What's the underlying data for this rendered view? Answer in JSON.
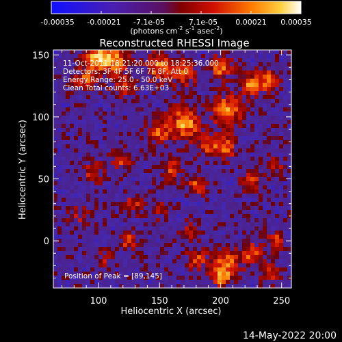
{
  "chart_data": {
    "type": "heatmap",
    "title": "Reconstructed RHESSI Image",
    "xlabel": "Heliocentric X (arcsec)",
    "ylabel": "Heliocentric Y (arcsec)",
    "xlim": [
      63,
      258
    ],
    "ylim": [
      -38,
      154
    ],
    "x_ticks": [
      100,
      150,
      200,
      250
    ],
    "y_ticks": [
      0,
      50,
      100,
      150
    ],
    "colorbar": {
      "ticks": [
        "-0.00035",
        "-0.00021",
        "-7.1e-05",
        "7.1e-05",
        "0.00021",
        "0.00035"
      ],
      "unit_main": "(photons cm",
      "unit_sup1": "-2",
      "unit_mid": " s",
      "unit_sup2": "-1",
      "unit_end": " asec",
      "unit_sup3": "-2",
      "unit_close": ")",
      "range": [
        -0.00035,
        0.00035
      ]
    },
    "annotations": [
      "11-Oct-2011 18:21:20.000 to 18:25:36.000",
      "Detectors: 3F 4F 5F 6F 7F 8F, Att 0",
      "Energy Range: 25.0 - 50.0 keV",
      "Clean     Total counts: 6.63E+03"
    ],
    "peak_label": "Position of Peak = [89,145]",
    "peak_position": [
      89,
      145
    ],
    "grid": false
  },
  "footer": {
    "date": "14-May-2022 20:00"
  }
}
